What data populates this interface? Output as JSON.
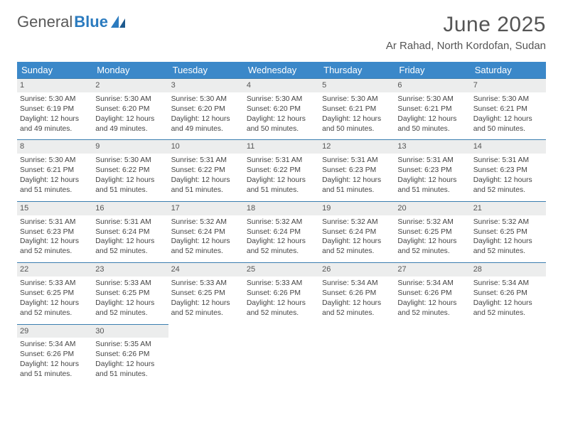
{
  "logo": {
    "word1": "General",
    "word2": "Blue"
  },
  "title": {
    "month": "June 2025",
    "location": "Ar Rahad, North Kordofan, Sudan"
  },
  "colors": {
    "header_bg": "#3b88c9",
    "header_text": "#ffffff",
    "daynum_bg": "#eceded",
    "row_border": "#3b7eb0",
    "logo_gray": "#585858",
    "logo_blue": "#2b7bbf",
    "title_color": "#555555",
    "body_text": "#444444",
    "page_bg": "#ffffff"
  },
  "columns": [
    "Sunday",
    "Monday",
    "Tuesday",
    "Wednesday",
    "Thursday",
    "Friday",
    "Saturday"
  ],
  "weeks": [
    [
      {
        "n": "1",
        "sr": "5:30 AM",
        "ss": "6:19 PM",
        "dl": "12 hours and 49 minutes."
      },
      {
        "n": "2",
        "sr": "5:30 AM",
        "ss": "6:20 PM",
        "dl": "12 hours and 49 minutes."
      },
      {
        "n": "3",
        "sr": "5:30 AM",
        "ss": "6:20 PM",
        "dl": "12 hours and 49 minutes."
      },
      {
        "n": "4",
        "sr": "5:30 AM",
        "ss": "6:20 PM",
        "dl": "12 hours and 50 minutes."
      },
      {
        "n": "5",
        "sr": "5:30 AM",
        "ss": "6:21 PM",
        "dl": "12 hours and 50 minutes."
      },
      {
        "n": "6",
        "sr": "5:30 AM",
        "ss": "6:21 PM",
        "dl": "12 hours and 50 minutes."
      },
      {
        "n": "7",
        "sr": "5:30 AM",
        "ss": "6:21 PM",
        "dl": "12 hours and 50 minutes."
      }
    ],
    [
      {
        "n": "8",
        "sr": "5:30 AM",
        "ss": "6:21 PM",
        "dl": "12 hours and 51 minutes."
      },
      {
        "n": "9",
        "sr": "5:30 AM",
        "ss": "6:22 PM",
        "dl": "12 hours and 51 minutes."
      },
      {
        "n": "10",
        "sr": "5:31 AM",
        "ss": "6:22 PM",
        "dl": "12 hours and 51 minutes."
      },
      {
        "n": "11",
        "sr": "5:31 AM",
        "ss": "6:22 PM",
        "dl": "12 hours and 51 minutes."
      },
      {
        "n": "12",
        "sr": "5:31 AM",
        "ss": "6:23 PM",
        "dl": "12 hours and 51 minutes."
      },
      {
        "n": "13",
        "sr": "5:31 AM",
        "ss": "6:23 PM",
        "dl": "12 hours and 51 minutes."
      },
      {
        "n": "14",
        "sr": "5:31 AM",
        "ss": "6:23 PM",
        "dl": "12 hours and 52 minutes."
      }
    ],
    [
      {
        "n": "15",
        "sr": "5:31 AM",
        "ss": "6:23 PM",
        "dl": "12 hours and 52 minutes."
      },
      {
        "n": "16",
        "sr": "5:31 AM",
        "ss": "6:24 PM",
        "dl": "12 hours and 52 minutes."
      },
      {
        "n": "17",
        "sr": "5:32 AM",
        "ss": "6:24 PM",
        "dl": "12 hours and 52 minutes."
      },
      {
        "n": "18",
        "sr": "5:32 AM",
        "ss": "6:24 PM",
        "dl": "12 hours and 52 minutes."
      },
      {
        "n": "19",
        "sr": "5:32 AM",
        "ss": "6:24 PM",
        "dl": "12 hours and 52 minutes."
      },
      {
        "n": "20",
        "sr": "5:32 AM",
        "ss": "6:25 PM",
        "dl": "12 hours and 52 minutes."
      },
      {
        "n": "21",
        "sr": "5:32 AM",
        "ss": "6:25 PM",
        "dl": "12 hours and 52 minutes."
      }
    ],
    [
      {
        "n": "22",
        "sr": "5:33 AM",
        "ss": "6:25 PM",
        "dl": "12 hours and 52 minutes."
      },
      {
        "n": "23",
        "sr": "5:33 AM",
        "ss": "6:25 PM",
        "dl": "12 hours and 52 minutes."
      },
      {
        "n": "24",
        "sr": "5:33 AM",
        "ss": "6:25 PM",
        "dl": "12 hours and 52 minutes."
      },
      {
        "n": "25",
        "sr": "5:33 AM",
        "ss": "6:26 PM",
        "dl": "12 hours and 52 minutes."
      },
      {
        "n": "26",
        "sr": "5:34 AM",
        "ss": "6:26 PM",
        "dl": "12 hours and 52 minutes."
      },
      {
        "n": "27",
        "sr": "5:34 AM",
        "ss": "6:26 PM",
        "dl": "12 hours and 52 minutes."
      },
      {
        "n": "28",
        "sr": "5:34 AM",
        "ss": "6:26 PM",
        "dl": "12 hours and 52 minutes."
      }
    ],
    [
      {
        "n": "29",
        "sr": "5:34 AM",
        "ss": "6:26 PM",
        "dl": "12 hours and 51 minutes."
      },
      {
        "n": "30",
        "sr": "5:35 AM",
        "ss": "6:26 PM",
        "dl": "12 hours and 51 minutes."
      },
      null,
      null,
      null,
      null,
      null
    ]
  ],
  "labels": {
    "sunrise": "Sunrise:",
    "sunset": "Sunset:",
    "daylight": "Daylight:"
  }
}
